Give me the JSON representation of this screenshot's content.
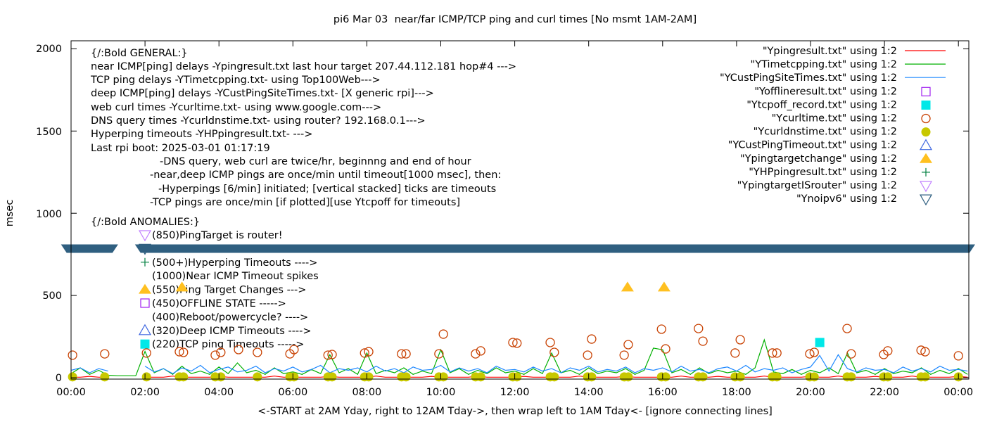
{
  "chart_data": {
    "type": "line",
    "title": "pi6 Mar 03  near/far ICMP/TCP ping and curl times [No msmt 1AM-2AM]",
    "xlabel": "<-START at 2AM Yday, right to 12AM Tday->, then wrap left to 1AM Tday<- [ignore connecting lines]",
    "ylabel": "msec",
    "xlim_hours": [
      0,
      24.3
    ],
    "ylim": [
      -8,
      2050
    ],
    "grid": false,
    "legend_placement": "top-right",
    "x_tick_labels": [
      "00:00",
      "02:00",
      "04:00",
      "06:00",
      "08:00",
      "10:00",
      "12:00",
      "14:00",
      "16:00",
      "18:00",
      "20:00",
      "22:00",
      "00:00"
    ],
    "y_ticks": [
      0,
      500,
      1000,
      1500,
      2000
    ],
    "y_tick_labels": [
      "0",
      "500",
      "1000",
      "1500",
      "2000"
    ],
    "x_hours": [
      0,
      0.25,
      0.5,
      0.75,
      1,
      1.25,
      1.5,
      1.75,
      2,
      2.25,
      2.5,
      2.75,
      3,
      3.25,
      3.5,
      3.75,
      4,
      4.25,
      4.5,
      4.75,
      5,
      5.25,
      5.5,
      5.75,
      6,
      6.25,
      6.5,
      6.75,
      7,
      7.25,
      7.5,
      7.75,
      8,
      8.25,
      8.5,
      8.75,
      9,
      9.25,
      9.5,
      9.75,
      10,
      10.25,
      10.5,
      10.75,
      11,
      11.25,
      11.5,
      11.75,
      12,
      12.25,
      12.5,
      12.75,
      13,
      13.25,
      13.5,
      13.75,
      14,
      14.25,
      14.5,
      14.75,
      15,
      15.25,
      15.5,
      15.75,
      16,
      16.25,
      16.5,
      16.75,
      17,
      17.25,
      17.5,
      17.75,
      18,
      18.25,
      18.5,
      18.75,
      19,
      19.25,
      19.5,
      19.75,
      20,
      20.25,
      20.5,
      20.75,
      21,
      21.25,
      21.5,
      21.75,
      22,
      22.25,
      22.5,
      22.75,
      23,
      23.25,
      23.5,
      23.75,
      24,
      24.25
    ],
    "line_series": [
      {
        "name": "\"Ypingresult.txt\" using 1:2",
        "color": "#ff0000",
        "values": [
          3,
          3,
          8,
          3,
          3,
          null,
          null,
          null,
          3,
          3,
          3,
          10,
          3,
          3,
          3,
          3,
          8,
          3,
          3,
          3,
          3,
          3,
          10,
          3,
          3,
          3,
          3,
          3,
          8,
          3,
          3,
          3,
          3,
          10,
          3,
          3,
          3,
          3,
          3,
          8,
          3,
          3,
          3,
          3,
          10,
          3,
          3,
          3,
          3,
          8,
          3,
          3,
          3,
          3,
          3,
          10,
          3,
          3,
          3,
          3,
          8,
          3,
          3,
          3,
          3,
          3,
          10,
          3,
          3,
          3,
          8,
          3,
          3,
          3,
          3,
          10,
          3,
          3,
          3,
          3,
          8,
          3,
          3,
          10,
          3,
          3,
          3,
          8,
          3,
          3,
          3,
          10,
          3,
          3,
          3,
          3,
          8,
          3
        ]
      },
      {
        "name": "\"YTimetcpping.txt\" using 1:2",
        "color": "#00b000",
        "values": [
          25,
          60,
          20,
          45,
          15,
          12,
          12,
          12,
          160,
          30,
          55,
          20,
          70,
          25,
          40,
          20,
          65,
          25,
          90,
          30,
          45,
          20,
          60,
          25,
          35,
          20,
          50,
          25,
          140,
          30,
          55,
          20,
          150,
          25,
          45,
          30,
          60,
          20,
          40,
          25,
          170,
          30,
          55,
          20,
          45,
          25,
          60,
          30,
          40,
          20,
          55,
          25,
          150,
          30,
          45,
          20,
          60,
          25,
          40,
          30,
          55,
          20,
          45,
          180,
          170,
          30,
          50,
          20,
          60,
          25,
          45,
          30,
          40,
          20,
          60,
          230,
          35,
          25,
          50,
          20,
          45,
          30,
          60,
          25,
          150,
          30,
          45,
          20,
          55,
          25,
          40,
          30,
          60,
          20,
          45,
          25,
          55,
          20
        ]
      },
      {
        "name": "\"YCustPingSiteTimes.txt\" using 1:2",
        "color": "#1e88ff",
        "values": [
          45,
          60,
          30,
          55,
          40,
          null,
          null,
          null,
          70,
          35,
          55,
          25,
          60,
          40,
          75,
          30,
          50,
          65,
          35,
          45,
          70,
          30,
          55,
          40,
          65,
          35,
          50,
          75,
          30,
          55,
          45,
          60,
          35,
          70,
          40,
          55,
          30,
          65,
          45,
          50,
          75,
          35,
          60,
          40,
          55,
          30,
          70,
          45,
          50,
          35,
          65,
          40,
          55,
          30,
          60,
          45,
          70,
          35,
          50,
          40,
          65,
          30,
          55,
          45,
          60,
          35,
          70,
          40,
          50,
          30,
          55,
          65,
          40,
          75,
          35,
          55,
          45,
          60,
          30,
          50,
          65,
          135,
          40,
          140,
          55,
          35,
          60,
          45,
          50,
          30,
          65,
          40,
          55,
          35,
          70,
          45,
          50,
          40
        ]
      }
    ],
    "point_series": {
      "offline": {
        "name": "\"Yofflineresult.txt\" using 1:2",
        "color": "#a020f0",
        "marker": "open-square",
        "points": []
      },
      "tcpoff": {
        "name": "\"Ytcpoff_record.txt\" using 1:2",
        "color": "#00e8e8",
        "marker": "filled-square",
        "points": [
          [
            20.25,
            214
          ]
        ]
      },
      "curltime": {
        "name": "\"Ycurltime.txt\" using 1:2",
        "color": "#c84000",
        "marker": "open-circle",
        "points": [
          [
            0.04,
            137
          ],
          [
            0.91,
            145
          ],
          [
            2.04,
            150
          ],
          [
            2.93,
            158
          ],
          [
            3.04,
            154
          ],
          [
            3.9,
            137
          ],
          [
            4.05,
            154
          ],
          [
            4.53,
            171
          ],
          [
            5.04,
            154
          ],
          [
            5.92,
            145
          ],
          [
            6.03,
            171
          ],
          [
            6.95,
            137
          ],
          [
            7.06,
            141
          ],
          [
            7.94,
            150
          ],
          [
            8.05,
            158
          ],
          [
            8.94,
            145
          ],
          [
            9.06,
            145
          ],
          [
            9.95,
            145
          ],
          [
            10.07,
            265
          ],
          [
            10.94,
            145
          ],
          [
            11.08,
            163
          ],
          [
            11.95,
            214
          ],
          [
            12.06,
            210
          ],
          [
            12.96,
            214
          ],
          [
            13.07,
            154
          ],
          [
            13.97,
            137
          ],
          [
            14.08,
            235
          ],
          [
            14.96,
            137
          ],
          [
            15.07,
            201
          ],
          [
            15.97,
            295
          ],
          [
            16.08,
            175
          ],
          [
            16.97,
            299
          ],
          [
            17.09,
            222
          ],
          [
            17.96,
            150
          ],
          [
            18.1,
            231
          ],
          [
            18.97,
            150
          ],
          [
            19.09,
            150
          ],
          [
            19.98,
            145
          ],
          [
            20.1,
            154
          ],
          [
            20.99,
            299
          ],
          [
            21.1,
            145
          ],
          [
            21.98,
            141
          ],
          [
            22.09,
            163
          ],
          [
            22.99,
            167
          ],
          [
            23.1,
            158
          ],
          [
            24.0,
            133
          ]
        ]
      },
      "dnstime": {
        "name": "\"Ycurldnstime.txt\" using 1:2",
        "color": "#c8c800",
        "marker": "filled-circle",
        "points": [
          [
            0.04,
            5
          ],
          [
            0.91,
            5
          ],
          [
            2.04,
            5
          ],
          [
            2.93,
            5
          ],
          [
            3.04,
            5
          ],
          [
            3.9,
            5
          ],
          [
            4.05,
            5
          ],
          [
            5.04,
            5
          ],
          [
            5.92,
            5
          ],
          [
            6.03,
            5
          ],
          [
            6.95,
            5
          ],
          [
            7.06,
            5
          ],
          [
            7.94,
            5
          ],
          [
            8.05,
            5
          ],
          [
            8.94,
            5
          ],
          [
            9.06,
            5
          ],
          [
            9.95,
            5
          ],
          [
            10.07,
            5
          ],
          [
            10.94,
            5
          ],
          [
            11.08,
            5
          ],
          [
            11.95,
            5
          ],
          [
            12.06,
            5
          ],
          [
            12.96,
            5
          ],
          [
            13.07,
            5
          ],
          [
            13.97,
            5
          ],
          [
            14.08,
            5
          ],
          [
            14.96,
            5
          ],
          [
            15.07,
            5
          ],
          [
            15.97,
            5
          ],
          [
            16.08,
            5
          ],
          [
            16.97,
            5
          ],
          [
            17.09,
            5
          ],
          [
            17.96,
            5
          ],
          [
            18.1,
            5
          ],
          [
            18.97,
            5
          ],
          [
            19.09,
            5
          ],
          [
            19.98,
            5
          ],
          [
            20.1,
            5
          ],
          [
            20.99,
            5
          ],
          [
            21.1,
            5
          ],
          [
            21.98,
            5
          ],
          [
            22.09,
            5
          ],
          [
            22.99,
            5
          ],
          [
            23.1,
            5
          ],
          [
            24.0,
            5
          ]
        ]
      },
      "custpingtimeout": {
        "name": "\"YCustPingTimeout.txt\" using 1:2",
        "color": "#4169e1",
        "marker": "open-triangle-up",
        "points": []
      },
      "targetchange": {
        "name": "\"Ypingtargetchange\" using 1:2",
        "color": "#ffc020",
        "marker": "filled-triangle-up",
        "points": [
          [
            3.0,
            550
          ],
          [
            15.05,
            550
          ],
          [
            16.04,
            550
          ]
        ]
      },
      "hpping": {
        "name": "\"YHPpingresult.txt\" using 1:2",
        "color": "#008040",
        "marker": "plus",
        "points": []
      },
      "targetisrouter": {
        "name": "\"YpingtargetISrouter\" using 1:2",
        "color": "#c080ff",
        "marker": "open-triangle-down",
        "points": []
      },
      "noipv6": {
        "name": "\"Ynoipv6\" using 1:2",
        "color": "#2f5f80",
        "marker": "open-triangle-down",
        "value": 785,
        "ranges_hours": [
          [
            -0.12,
            1.12
          ],
          [
            1.88,
            24.3
          ]
        ]
      }
    },
    "legend_order": [
      "line:0",
      "line:1",
      "line:2",
      "offline",
      "tcpoff",
      "curltime",
      "dnstime",
      "custpingtimeout",
      "targetchange",
      "hpping",
      "targetisrouter",
      "noipv6"
    ]
  },
  "annotations": {
    "general": [
      "{/:Bold GENERAL:}",
      "near ICMP[ping] delays -Ypingresult.txt last hour target 207.44.112.181 hop#4 --->",
      "TCP ping delays -YTimetcpping.txt- using Top100Web--->",
      "deep ICMP[ping] delays -YCustPingSiteTimes.txt- [X generic rpi]--->",
      "web curl times -Ycurltime.txt- using www.google.com--->",
      "DNS query times -Ycurldnstime.txt- using router? 192.168.0.1--->",
      "Hyperping timeouts -YHPpingresult.txt- --->",
      "Last rpi boot: 2025-03-01 01:17:19"
    ],
    "notes": [
      "-DNS query, web curl are twice/hr, beginnng and end of hour",
      "-near,deep ICMP pings are once/min until timeout[1000 msec], then:",
      "-Hyperpings [6/min] initiated; [vertical stacked] ticks are timeouts",
      "-TCP pings are once/min [if plotted][use Ytcpoff for timeouts]"
    ],
    "anomalies_title": "{/:Bold ANOMALIES:}",
    "anomalies": [
      {
        "marker": "open-triangle-down",
        "color": "#c080ff",
        "text": "(850)PingTarget is router!"
      },
      {
        "marker": "open-triangle-down",
        "color": "#2f5f80",
        "text": ""
      },
      {
        "marker": "plus",
        "color": "#008040",
        "text": "(500+)Hyperping Timeouts ---->"
      },
      {
        "marker": "none",
        "color": "",
        "text": "(1000)Near ICMP Timeout spikes"
      },
      {
        "marker": "filled-triangle-up",
        "color": "#ffc020",
        "text": "(550)Ping Target Changes --->"
      },
      {
        "marker": "open-square",
        "color": "#a020f0",
        "text": "(450)OFFLINE STATE ----->"
      },
      {
        "marker": "none",
        "color": "",
        "text": "(400)Reboot/powercycle? ---->"
      },
      {
        "marker": "open-triangle-up",
        "color": "#4169e1",
        "text": "(320)Deep ICMP Timeouts ---->"
      },
      {
        "marker": "filled-square",
        "color": "#00e8e8",
        "text": "(220)TCP ping Timeouts ----->"
      }
    ]
  }
}
